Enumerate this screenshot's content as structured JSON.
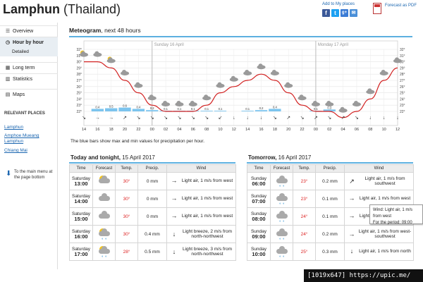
{
  "header": {
    "place": "Lamphun",
    "country": "(Thailand)",
    "favorites": "Add to My places",
    "pdf": "Forecast as PDF",
    "social": [
      "f",
      "t",
      "g+",
      "✉"
    ]
  },
  "sidebar": {
    "items": [
      {
        "label": "Overview",
        "icon": "list-icon"
      },
      {
        "label": "Hour by hour",
        "icon": "clock-icon"
      },
      {
        "label": "Long term",
        "icon": "calendar-icon"
      },
      {
        "label": "Statistics",
        "icon": "chart-icon"
      },
      {
        "label": "Maps",
        "icon": "map-icon"
      }
    ],
    "sub": "Detailed",
    "related_heading": "RELEVANT PLACES",
    "related": [
      "Lamphun",
      "Amphoe Mueang Lamphun",
      "Chiang Mai"
    ],
    "back": "To the main menu at the page bottom"
  },
  "meteogram": {
    "heading_bold": "Meteogram",
    "heading_rest": ", next 48 hours",
    "note": "The blue bars show max and min values for precipitation per hour.",
    "days": [
      "Sunday 16 April",
      "Monday 17 April"
    ],
    "x_labels": [
      "14",
      "16",
      "18",
      "20",
      "22",
      "00",
      "02",
      "04",
      "06",
      "08",
      "10",
      "12",
      "14",
      "16",
      "18",
      "20",
      "22",
      "00",
      "02",
      "04",
      "06",
      "08",
      "10",
      "12"
    ],
    "y_labels": [
      "32°",
      "31°",
      "30°",
      "29°",
      "28°",
      "27°",
      "26°",
      "25°",
      "24°",
      "23°",
      "22°"
    ],
    "precip_labels": [
      "0.4",
      "0.5",
      "0.6",
      "0.4",
      "0.2",
      "0.1",
      "0.1",
      "0.1",
      "0.1",
      "0.1",
      "0.1",
      "0.2",
      "0.4",
      "0.1",
      "0.3"
    ],
    "temps": [
      30,
      30,
      29,
      27,
      25,
      23,
      22,
      22,
      22,
      23,
      25,
      26,
      27,
      28,
      27,
      25,
      23,
      22,
      22,
      21,
      22,
      24,
      27,
      29
    ]
  },
  "today": {
    "title_bold": "Today and tonight,",
    "title_rest": " 15 April 2017",
    "columns": [
      "Time",
      "Forecast",
      "Temp.",
      "Precip.",
      "Wind"
    ],
    "rows": [
      {
        "day": "Saturday",
        "time": "13:00",
        "temp": "30°",
        "precip": "0 mm",
        "wind": "Light air, 1 m/s from west",
        "arrow": "→",
        "sun": true,
        "drops": false
      },
      {
        "day": "Saturday",
        "time": "14:00",
        "temp": "30°",
        "precip": "0 mm",
        "wind": "Light air, 1 m/s from west",
        "arrow": "→",
        "sun": false,
        "drops": false
      },
      {
        "day": "Saturday",
        "time": "15:00",
        "temp": "30°",
        "precip": "0 mm",
        "wind": "Light air, 1 m/s from west",
        "arrow": "→",
        "sun": false,
        "drops": false
      },
      {
        "day": "Saturday",
        "time": "16:00",
        "temp": "30°",
        "precip": "0.4 mm",
        "wind": "Light breeze, 2 m/s from north-northwest",
        "arrow": "↓",
        "sun": true,
        "drops": true
      },
      {
        "day": "Saturday",
        "time": "17:00",
        "temp": "28°",
        "precip": "0.5 mm",
        "wind": "Light breeze, 3 m/s from north-northwest",
        "arrow": "↓",
        "sun": true,
        "drops": true
      }
    ]
  },
  "tomorrow": {
    "title_bold": "Tomorrow,",
    "title_rest": " 16 April 2017",
    "columns": [
      "Time",
      "Forecast",
      "Temp.",
      "Precip.",
      "Wind"
    ],
    "rows": [
      {
        "day": "Sunday",
        "time": "06:00",
        "temp": "23°",
        "precip": "0.2 mm",
        "wind": "Light air, 1 m/s from southwest",
        "arrow": "↗",
        "drops": true
      },
      {
        "day": "Sunday",
        "time": "07:00",
        "temp": "23°",
        "precip": "0.1 mm",
        "wind": "Light air, 1 m/s from west",
        "arrow": "→",
        "drops": true
      },
      {
        "day": "Sunday",
        "time": "08:00",
        "temp": "24°",
        "precip": "0.1 mm",
        "wind": "Light air, 1 m/s from west",
        "arrow": "→",
        "drops": true
      },
      {
        "day": "Sunday",
        "time": "09:00",
        "temp": "24°",
        "precip": "0.2 mm",
        "wind": "Light air, 1 m/s from west-southwest",
        "arrow": "→",
        "drops": true
      },
      {
        "day": "Sunday",
        "time": "10:00",
        "temp": "25°",
        "precip": "0.3 mm",
        "wind": "Light air, 1 m/s from north",
        "arrow": "↓",
        "drops": true
      }
    ]
  },
  "tooltip": {
    "line1": "Wind: Light air, 1 m/s from west",
    "line2": "For the period: 09:00"
  },
  "stamp": "[1019x647] https://upic.me/",
  "colors": {
    "accent": "#5cb0e0",
    "temp": "#d22222",
    "link": "#1b66b0",
    "precip_bar": "#7cc4ee"
  }
}
